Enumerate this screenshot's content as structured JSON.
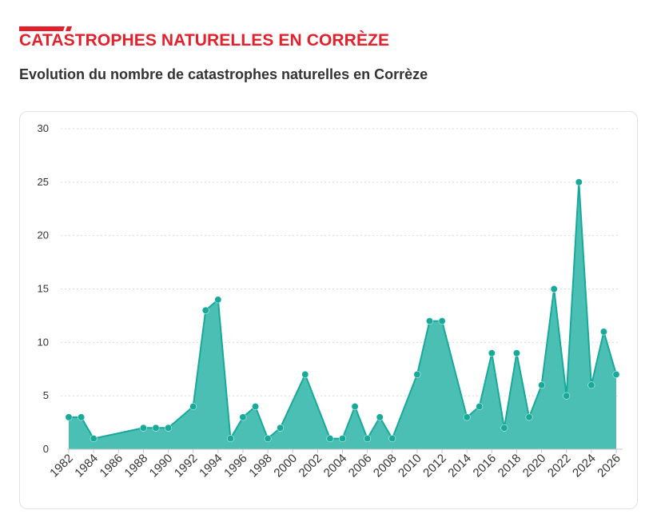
{
  "header": {
    "section_title": "CATASTROPHES NATURELLES EN CORRÈZE",
    "subtitle": "Evolution du nombre de catastrophes naturelles en Corrèze"
  },
  "colors": {
    "accent": "#e3202c",
    "series": "#17a99a",
    "area": "#4bbfb4",
    "grid": "#d9d9d9",
    "text": "#333333"
  },
  "chart_data": {
    "type": "area",
    "title": "",
    "xlabel": "",
    "ylabel": "",
    "ylim": [
      0,
      30
    ],
    "yticks": [
      0,
      5,
      10,
      15,
      20,
      25,
      30
    ],
    "xlim": [
      1982,
      2026
    ],
    "xticks": [
      1982,
      1984,
      1986,
      1988,
      1990,
      1992,
      1994,
      1996,
      1998,
      2000,
      2002,
      2004,
      2006,
      2008,
      2010,
      2012,
      2014,
      2016,
      2018,
      2020,
      2022,
      2024,
      2026
    ],
    "grid": true,
    "legend": "none",
    "series": [
      {
        "x": [
          1982,
          1983,
          1984,
          1988,
          1989,
          1990,
          1992,
          1993,
          1994,
          1995,
          1996,
          1997,
          1998,
          1999,
          2001,
          2003,
          2004,
          2005,
          2006,
          2007,
          2008,
          2010,
          2011,
          2012,
          2014,
          2015,
          2016,
          2017,
          2018,
          2019,
          2020,
          2021,
          2022,
          2023,
          2024,
          2025,
          2026
        ],
        "y": [
          3,
          3,
          1,
          2,
          2,
          2,
          4,
          13,
          14,
          1,
          3,
          4,
          1,
          2,
          7,
          1,
          1,
          4,
          1,
          3,
          1,
          7,
          12,
          12,
          3,
          4,
          9,
          2,
          9,
          3,
          6,
          15,
          5,
          25,
          6,
          11,
          7
        ]
      }
    ]
  }
}
